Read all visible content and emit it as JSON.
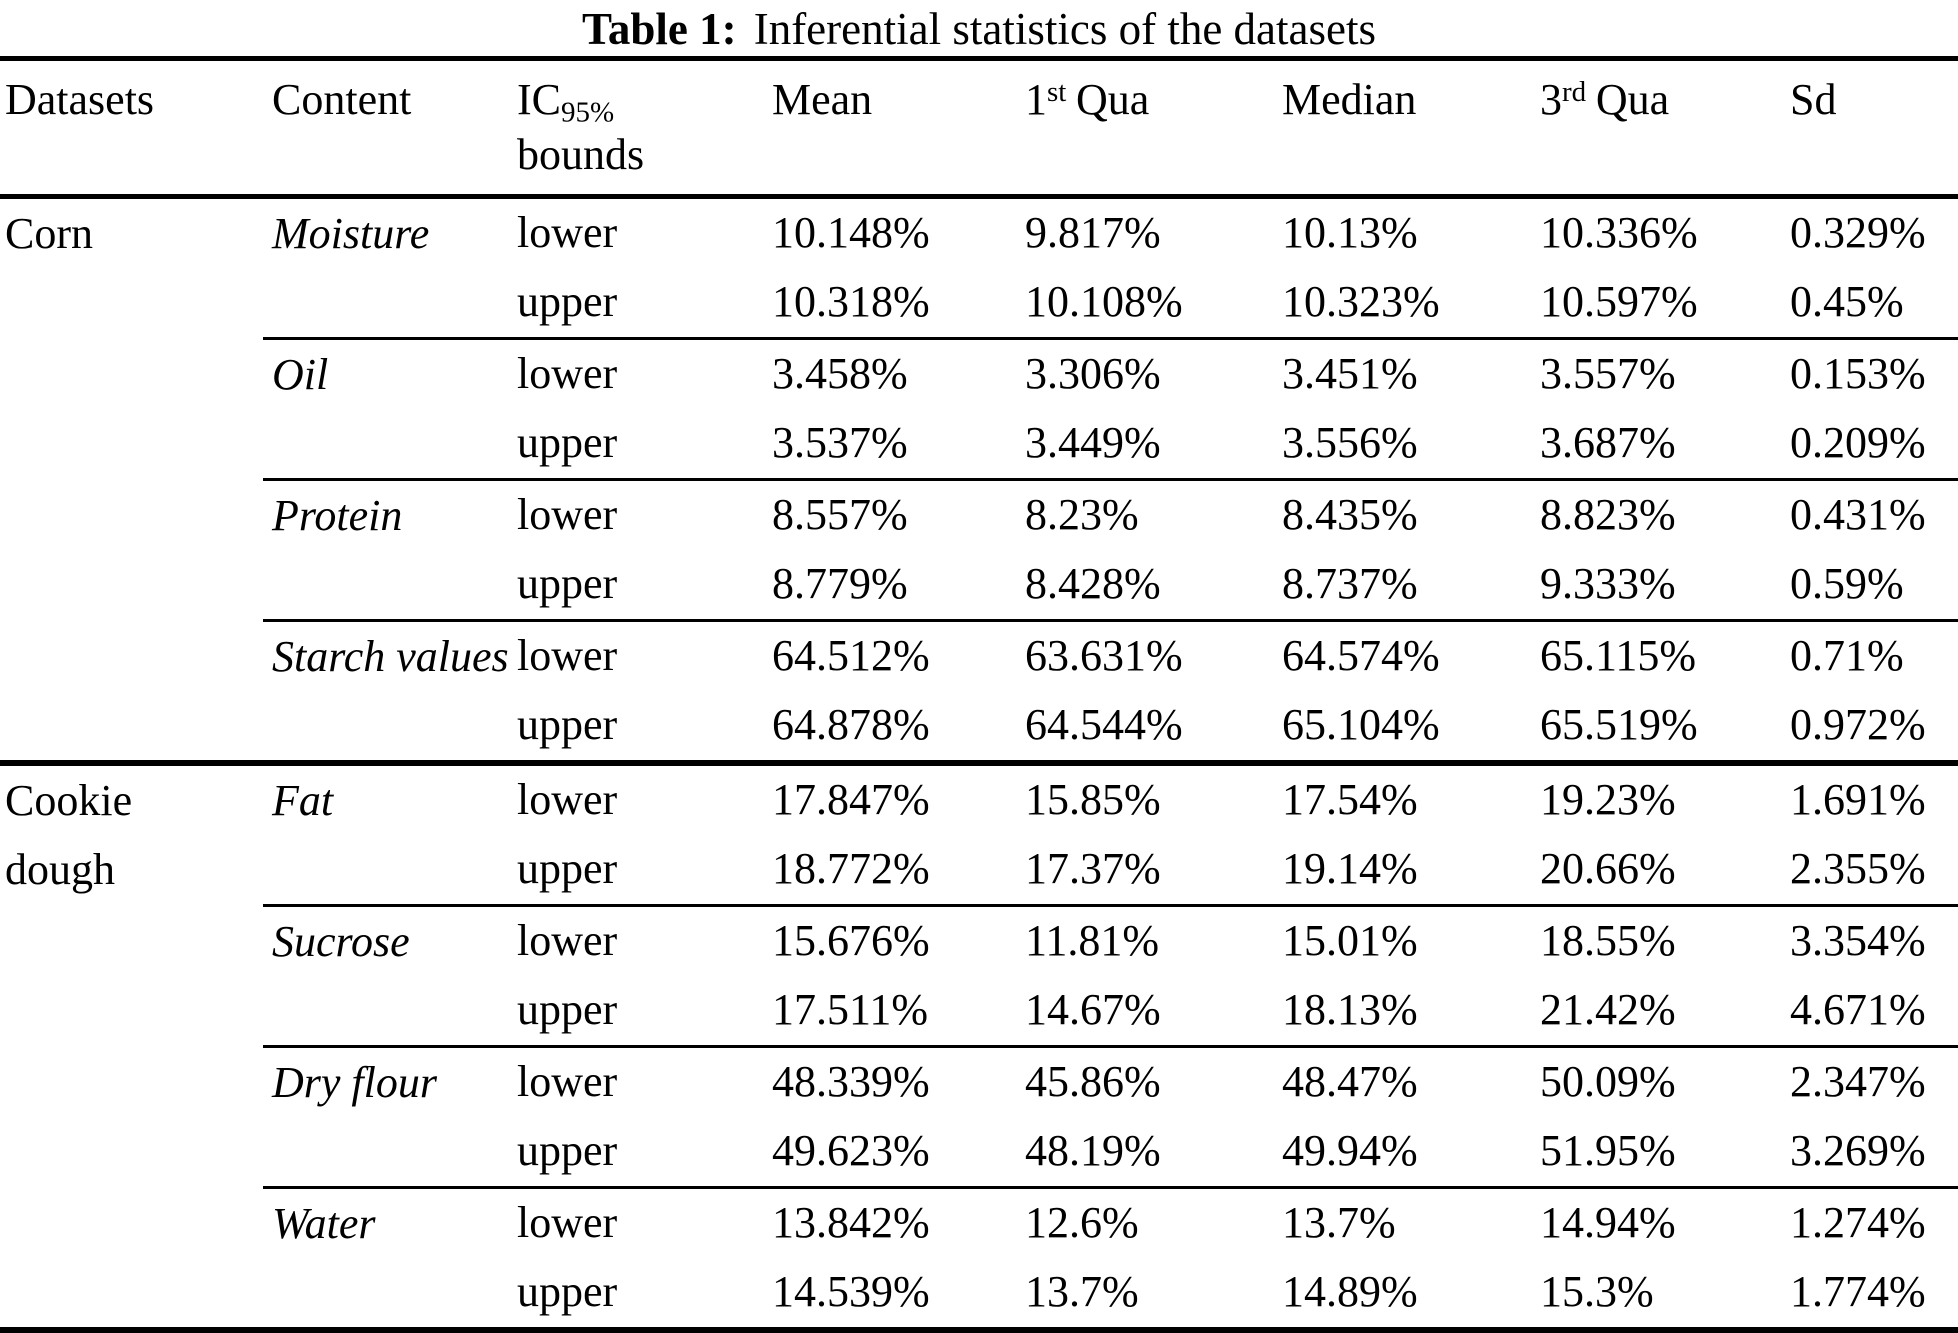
{
  "title": {
    "label": "Table 1:",
    "text": "Inferential statistics of the datasets"
  },
  "colors": {
    "text": "#000000",
    "background": "#ffffff",
    "rule": "#000000"
  },
  "table": {
    "headers": {
      "datasets": "Datasets",
      "content": "Content",
      "ic_base": "IC",
      "ic_sub": "95%",
      "ic_line2": "bounds",
      "mean": "Mean",
      "q1_base": "1",
      "q1_sup": "st",
      "q1_word": "Qua",
      "median": "Median",
      "q3_base": "3",
      "q3_sup": "rd",
      "q3_word": "Qua",
      "sd": "Sd"
    },
    "sections": [
      {
        "dataset": "Corn",
        "groups": [
          {
            "content": "Moisture",
            "rows": [
              {
                "bound": "lower",
                "mean": "10.148%",
                "q1": "9.817%",
                "median": "10.13%",
                "q3": "10.336%",
                "sd": "0.329%"
              },
              {
                "bound": "upper",
                "mean": "10.318%",
                "q1": "10.108%",
                "median": "10.323%",
                "q3": "10.597%",
                "sd": "0.45%"
              }
            ]
          },
          {
            "content": "Oil",
            "rows": [
              {
                "bound": "lower",
                "mean": "3.458%",
                "q1": "3.306%",
                "median": "3.451%",
                "q3": "3.557%",
                "sd": "0.153%"
              },
              {
                "bound": "upper",
                "mean": "3.537%",
                "q1": "3.449%",
                "median": "3.556%",
                "q3": "3.687%",
                "sd": "0.209%"
              }
            ]
          },
          {
            "content": "Protein",
            "rows": [
              {
                "bound": "lower",
                "mean": "8.557%",
                "q1": "8.23%",
                "median": "8.435%",
                "q3": "8.823%",
                "sd": "0.431%"
              },
              {
                "bound": "upper",
                "mean": "8.779%",
                "q1": "8.428%",
                "median": "8.737%",
                "q3": "9.333%",
                "sd": "0.59%"
              }
            ]
          },
          {
            "content": "Starch values",
            "rows": [
              {
                "bound": "lower",
                "mean": "64.512%",
                "q1": "63.631%",
                "median": "64.574%",
                "q3": "65.115%",
                "sd": "0.71%"
              },
              {
                "bound": "upper",
                "mean": "64.878%",
                "q1": "64.544%",
                "median": "65.104%",
                "q3": "65.519%",
                "sd": "0.972%"
              }
            ]
          }
        ]
      },
      {
        "dataset": "Cookie dough",
        "groups": [
          {
            "content": "Fat",
            "rows": [
              {
                "bound": "lower",
                "mean": "17.847%",
                "q1": "15.85%",
                "median": "17.54%",
                "q3": "19.23%",
                "sd": "1.691%"
              },
              {
                "bound": "upper",
                "mean": "18.772%",
                "q1": "17.37%",
                "median": "19.14%",
                "q3": "20.66%",
                "sd": "2.355%"
              }
            ]
          },
          {
            "content": "Sucrose",
            "rows": [
              {
                "bound": "lower",
                "mean": "15.676%",
                "q1": "11.81%",
                "median": "15.01%",
                "q3": "18.55%",
                "sd": "3.354%"
              },
              {
                "bound": "upper",
                "mean": "17.511%",
                "q1": "14.67%",
                "median": "18.13%",
                "q3": "21.42%",
                "sd": "4.671%"
              }
            ]
          },
          {
            "content": "Dry flour",
            "rows": [
              {
                "bound": "lower",
                "mean": "48.339%",
                "q1": "45.86%",
                "median": "48.47%",
                "q3": "50.09%",
                "sd": "2.347%"
              },
              {
                "bound": "upper",
                "mean": "49.623%",
                "q1": "48.19%",
                "median": "49.94%",
                "q3": "51.95%",
                "sd": "3.269%"
              }
            ]
          },
          {
            "content": "Water",
            "rows": [
              {
                "bound": "lower",
                "mean": "13.842%",
                "q1": "12.6%",
                "median": "13.7%",
                "q3": "14.94%",
                "sd": "1.274%"
              },
              {
                "bound": "upper",
                "mean": "14.539%",
                "q1": "13.7%",
                "median": "14.89%",
                "q3": "15.3%",
                "sd": "1.774%"
              }
            ]
          }
        ]
      }
    ]
  }
}
